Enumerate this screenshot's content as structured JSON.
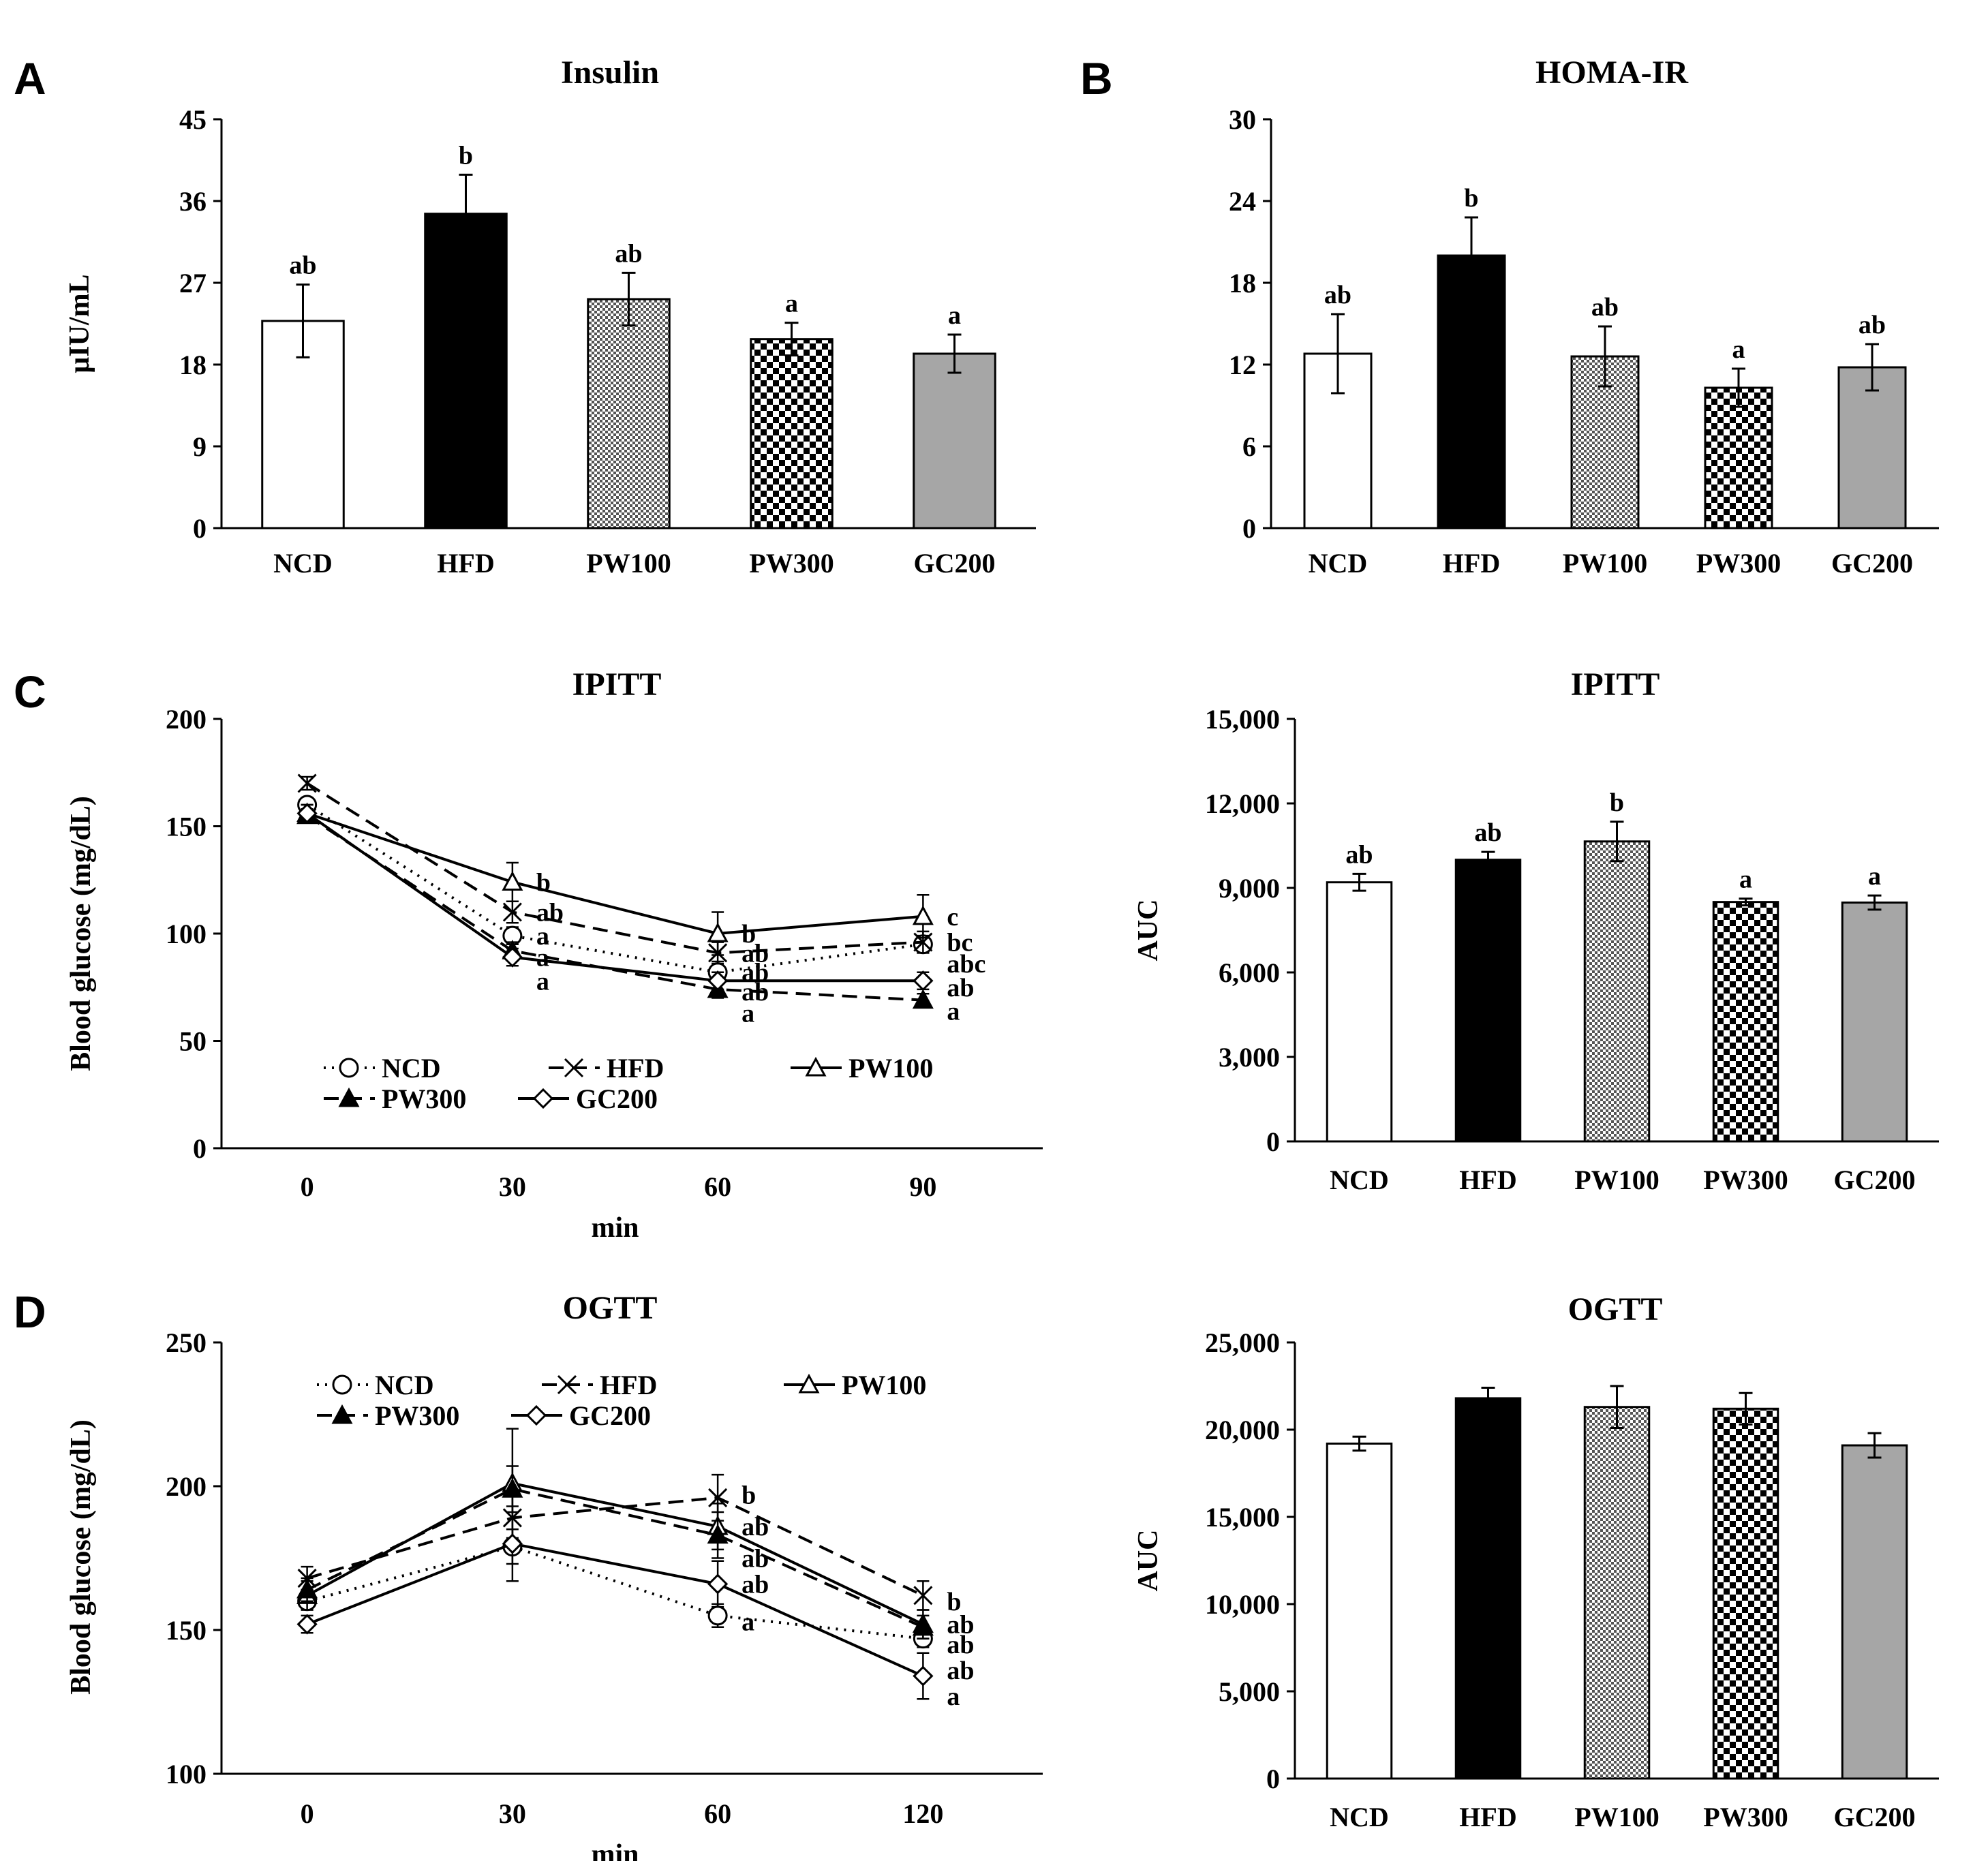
{
  "figure": {
    "panels": [
      "A",
      "B",
      "C",
      "D"
    ]
  },
  "styles": {
    "NCD": {
      "fill": "#ffffff",
      "pattern": "none",
      "marker": "circle",
      "markerFill": "#ffffff",
      "dash": "3,9"
    },
    "HFD": {
      "fill": "#000000",
      "pattern": "none",
      "marker": "x",
      "markerFill": "none",
      "dash": "22,12"
    },
    "PW100": {
      "fill": "#ffffff",
      "pattern": "fine",
      "marker": "triangle",
      "markerFill": "#ffffff",
      "dash": ""
    },
    "PW300": {
      "fill": "#ffffff",
      "pattern": "coarse",
      "marker": "triangle",
      "markerFill": "#000000",
      "dash": "22,12"
    },
    "GC200": {
      "fill": "#a6a6a6",
      "pattern": "none",
      "marker": "diamond",
      "markerFill": "#ffffff",
      "dash": ""
    }
  },
  "chart_data": [
    {
      "id": "insulin",
      "panel": "A",
      "type": "bar",
      "title": "Insulin",
      "ylabel": "μIU/mL",
      "xlabel": "",
      "ylim": [
        0,
        45
      ],
      "yticks": [
        {
          "v": 0,
          "t": "0"
        },
        {
          "v": 9,
          "t": "9"
        },
        {
          "v": 18,
          "t": "18"
        },
        {
          "v": 27,
          "t": "27"
        },
        {
          "v": 36,
          "t": "36"
        },
        {
          "v": 45,
          "t": "45"
        }
      ],
      "categories": [
        "NCD",
        "HFD",
        "PW100",
        "PW300",
        "GC200"
      ],
      "values": [
        22.8,
        34.6,
        25.2,
        20.8,
        19.2
      ],
      "errors": [
        4.0,
        4.3,
        2.9,
        1.8,
        2.1
      ],
      "letters": [
        "ab",
        "b",
        "ab",
        "a",
        "a"
      ]
    },
    {
      "id": "homa",
      "panel": "B",
      "type": "bar",
      "title": "HOMA-IR",
      "ylabel": "",
      "xlabel": "",
      "ylim": [
        0,
        30
      ],
      "yticks": [
        {
          "v": 0,
          "t": "0"
        },
        {
          "v": 6,
          "t": "6"
        },
        {
          "v": 12,
          "t": "12"
        },
        {
          "v": 18,
          "t": "18"
        },
        {
          "v": 24,
          "t": "24"
        },
        {
          "v": 30,
          "t": "30"
        }
      ],
      "categories": [
        "NCD",
        "HFD",
        "PW100",
        "PW300",
        "GC200"
      ],
      "values": [
        12.8,
        20.0,
        12.6,
        10.3,
        11.8
      ],
      "errors": [
        2.9,
        2.8,
        2.2,
        1.4,
        1.7
      ],
      "letters": [
        "ab",
        "b",
        "ab",
        "a",
        "ab"
      ]
    },
    {
      "id": "ipitt",
      "panel": "C",
      "type": "line",
      "title": "IPITT",
      "ylabel": "Blood glucose (mg/dL)",
      "xlabel": "min",
      "ylim": [
        0,
        200
      ],
      "yticks": [
        {
          "v": 0,
          "t": "0"
        },
        {
          "v": 50,
          "t": "50"
        },
        {
          "v": 100,
          "t": "100"
        },
        {
          "v": 150,
          "t": "150"
        },
        {
          "v": 200,
          "t": "200"
        }
      ],
      "x": [
        "0",
        "30",
        "60",
        "90"
      ],
      "series": [
        {
          "name": "NCD",
          "values": [
            160,
            99,
            82,
            95
          ],
          "errors": [
            3,
            4,
            5,
            4
          ]
        },
        {
          "name": "HFD",
          "values": [
            170,
            110,
            91,
            96
          ],
          "errors": [
            3,
            5,
            5,
            5
          ]
        },
        {
          "name": "PW100",
          "values": [
            156,
            124,
            100,
            108
          ],
          "errors": [
            4,
            9,
            10,
            10
          ]
        },
        {
          "name": "PW300",
          "values": [
            155,
            92,
            74,
            69
          ],
          "errors": [
            3,
            4,
            4,
            3
          ]
        },
        {
          "name": "GC200",
          "values": [
            156,
            89,
            78,
            78
          ],
          "errors": [
            4,
            4,
            4,
            4
          ]
        }
      ],
      "letter_groups": [
        {
          "xi": 1,
          "items": [
            {
              "t": "b",
              "v": 124
            },
            {
              "t": "ab",
              "v": 110
            },
            {
              "t": "a",
              "v": 99
            },
            {
              "t": "a",
              "v": 89
            },
            {
              "t": "a",
              "v": 78
            }
          ]
        },
        {
          "xi": 2,
          "items": [
            {
              "t": "b",
              "v": 100
            },
            {
              "t": "ab",
              "v": 91
            },
            {
              "t": "ab",
              "v": 82
            },
            {
              "t": "ab",
              "v": 73
            },
            {
              "t": "a",
              "v": 63
            }
          ]
        },
        {
          "xi": 3,
          "items": [
            {
              "t": "c",
              "v": 108
            },
            {
              "t": "bc",
              "v": 96
            },
            {
              "t": "abc",
              "v": 86
            },
            {
              "t": "ab",
              "v": 75
            },
            {
              "t": "a",
              "v": 64
            }
          ]
        }
      ],
      "legend": {
        "row1": [
          "NCD",
          "HFD",
          "PW100"
        ],
        "row2": [
          "PW300",
          "GC200"
        ],
        "position": "bottom-left"
      }
    },
    {
      "id": "ipitt_auc",
      "panel": "C",
      "type": "bar",
      "title": "IPITT",
      "ylabel": "AUC",
      "xlabel": "",
      "ylim": [
        0,
        15000
      ],
      "yticks": [
        {
          "v": 0,
          "t": "0"
        },
        {
          "v": 3000,
          "t": "3,000"
        },
        {
          "v": 6000,
          "t": "6,000"
        },
        {
          "v": 9000,
          "t": "9,000"
        },
        {
          "v": 12000,
          "t": "12,000"
        },
        {
          "v": 15000,
          "t": "15,000"
        }
      ],
      "categories": [
        "NCD",
        "HFD",
        "PW100",
        "PW300",
        "GC200"
      ],
      "values": [
        9200,
        10000,
        10650,
        8500,
        8480
      ],
      "errors": [
        300,
        280,
        700,
        120,
        250
      ],
      "letters": [
        "ab",
        "ab",
        "b",
        "a",
        "a"
      ]
    },
    {
      "id": "ogtt",
      "panel": "D",
      "type": "line",
      "title": "OGTT",
      "ylabel": "Blood glucose (mg/dL)",
      "xlabel": "min",
      "ylim": [
        100,
        250
      ],
      "yticks": [
        {
          "v": 100,
          "t": "100"
        },
        {
          "v": 150,
          "t": "150"
        },
        {
          "v": 200,
          "t": "200"
        },
        {
          "v": 250,
          "t": "250"
        }
      ],
      "x": [
        "0",
        "30",
        "60",
        "120"
      ],
      "series": [
        {
          "name": "NCD",
          "values": [
            160,
            179,
            155,
            147
          ],
          "errors": [
            3,
            6,
            4,
            3
          ]
        },
        {
          "name": "HFD",
          "values": [
            168,
            189,
            196,
            162
          ],
          "errors": [
            4,
            8,
            8,
            5
          ]
        },
        {
          "name": "PW100",
          "values": [
            162,
            201,
            186,
            152
          ],
          "errors": [
            5,
            19,
            8,
            5
          ]
        },
        {
          "name": "PW300",
          "values": [
            164,
            199,
            183,
            151
          ],
          "errors": [
            4,
            8,
            8,
            4
          ]
        },
        {
          "name": "GC200",
          "values": [
            152,
            180,
            166,
            134
          ],
          "errors": [
            3,
            13,
            8,
            8
          ]
        }
      ],
      "letter_groups": [
        {
          "xi": 2,
          "items": [
            {
              "t": "b",
              "v": 197
            },
            {
              "t": "ab",
              "v": 186
            },
            {
              "t": "ab",
              "v": 175
            },
            {
              "t": "ab",
              "v": 166
            },
            {
              "t": "a",
              "v": 153
            }
          ]
        },
        {
          "xi": 3,
          "items": [
            {
              "t": "b",
              "v": 160
            },
            {
              "t": "ab",
              "v": 152
            },
            {
              "t": "ab",
              "v": 145
            },
            {
              "t": "ab",
              "v": 136
            },
            {
              "t": "a",
              "v": 127
            }
          ]
        }
      ],
      "legend": {
        "row1": [
          "NCD",
          "HFD",
          "PW100"
        ],
        "row2": [
          "PW300",
          "GC200"
        ],
        "position": "top-left"
      }
    },
    {
      "id": "ogtt_auc",
      "panel": "D",
      "type": "bar",
      "title": "OGTT",
      "ylabel": "AUC",
      "xlabel": "",
      "ylim": [
        0,
        25000
      ],
      "yticks": [
        {
          "v": 0,
          "t": "0"
        },
        {
          "v": 5000,
          "t": "5,000"
        },
        {
          "v": 10000,
          "t": "10,000"
        },
        {
          "v": 15000,
          "t": "15,000"
        },
        {
          "v": 20000,
          "t": "20,000"
        },
        {
          "v": 25000,
          "t": "25,000"
        }
      ],
      "categories": [
        "NCD",
        "HFD",
        "PW100",
        "PW300",
        "GC200"
      ],
      "values": [
        19200,
        21800,
        21300,
        21200,
        19100
      ],
      "errors": [
        400,
        600,
        1200,
        900,
        700
      ],
      "letters": [
        "",
        "",
        "",
        "",
        ""
      ]
    }
  ]
}
